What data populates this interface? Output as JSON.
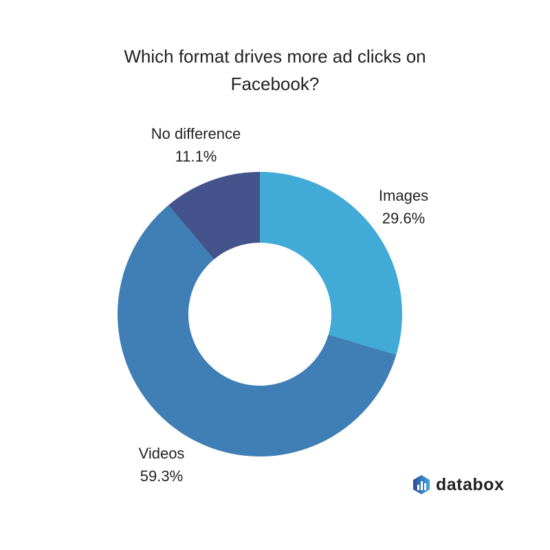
{
  "chart_data": {
    "type": "pie",
    "variant": "donut",
    "title_line1": "Which format drives more ad clicks on",
    "title_line2": "Facebook?",
    "slices": [
      {
        "label": "Images",
        "value": 29.6,
        "display": "29.6%",
        "color": "#42aad7"
      },
      {
        "label": "Videos",
        "value": 59.3,
        "display": "59.3%",
        "color": "#3f7fb5"
      },
      {
        "label": "No difference",
        "value": 11.1,
        "display": "11.1%",
        "color": "#44538c"
      }
    ]
  },
  "brand": {
    "name": "databox"
  }
}
